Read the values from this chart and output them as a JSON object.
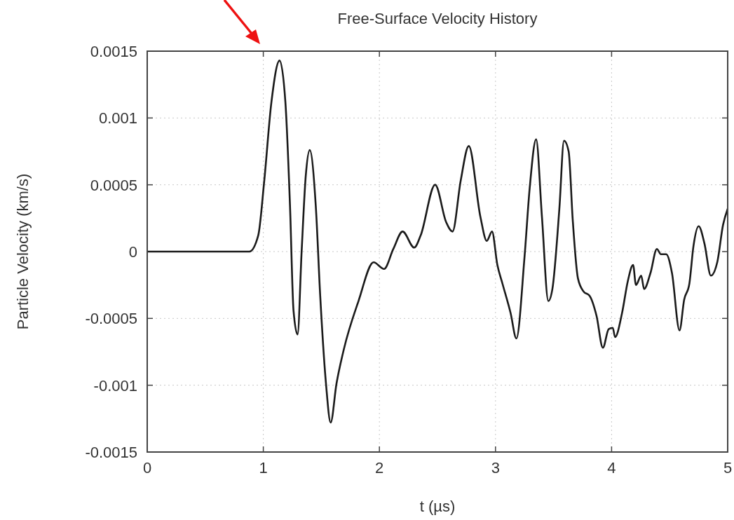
{
  "chart_data": {
    "type": "line",
    "title": "Free-Surface Velocity History",
    "xlabel": "t (µs)",
    "ylabel": "Particle Velocity (km/s)",
    "xlim": [
      0,
      5
    ],
    "xticks": [
      0,
      1,
      2,
      3,
      4,
      5
    ],
    "ylim": [
      -0.0015,
      0.0015
    ],
    "yticks": [
      -0.0015,
      -0.001,
      -0.0005,
      0,
      0.0005,
      0.001,
      0.0015
    ],
    "grid": true,
    "marker": "none",
    "line_style": "solid",
    "series": [
      {
        "color": "#1a1a1a",
        "x": [
          0,
          0.88,
          0.956,
          1.007,
          1.07,
          1.14,
          1.19,
          1.23,
          1.26,
          1.295,
          1.33,
          1.365,
          1.4,
          1.452,
          1.49,
          1.54,
          1.58,
          1.63,
          1.694,
          1.82,
          1.95,
          2.04,
          2.12,
          2.2,
          2.3,
          2.355,
          2.48,
          2.575,
          2.63,
          2.7,
          2.77,
          2.87,
          2.925,
          2.97,
          3.016,
          3.06,
          3.13,
          3.18,
          3.25,
          3.295,
          3.35,
          3.4,
          3.455,
          3.49,
          3.55,
          3.59,
          3.63,
          3.665,
          3.71,
          3.76,
          3.81,
          3.87,
          3.925,
          3.975,
          4.01,
          4.03,
          4.09,
          4.14,
          4.185,
          4.21,
          4.255,
          4.28,
          4.335,
          4.39,
          4.425,
          4.47,
          4.52,
          4.585,
          4.625,
          4.67,
          4.705,
          4.75,
          4.8,
          4.855,
          4.91,
          4.96,
          5
        ],
        "values": [
          0,
          0,
          0.00012,
          0.00052,
          0.00112,
          0.00143,
          0.00112,
          0.00034,
          -0.00044,
          -0.00062,
          0,
          0.00056,
          0.00076,
          0.00034,
          -0.00033,
          -0.00099,
          -0.00128,
          -0.00099,
          -0.00073,
          -0.00037,
          -8e-05,
          -0.00013,
          2e-05,
          0.00015,
          3e-05,
          0.00012,
          0.0005,
          0.00022,
          0.00015,
          0.00053,
          0.00079,
          0.00026,
          8e-05,
          0.00015,
          -0.0001,
          -0.00024,
          -0.00046,
          -0.00065,
          -4e-05,
          0.00048,
          0.00084,
          0.00026,
          -0.00037,
          -0.00028,
          0.00032,
          0.00083,
          0.00075,
          0.00024,
          -0.0002,
          -0.0003,
          -0.00033,
          -0.00048,
          -0.00072,
          -0.00058,
          -0.00057,
          -0.00064,
          -0.00046,
          -0.00022,
          -0.0001,
          -0.00025,
          -0.00018,
          -0.00028,
          -0.00016,
          2e-05,
          -2e-05,
          -2e-05,
          -0.00016,
          -0.00059,
          -0.00036,
          -0.00024,
          4e-05,
          0.00019,
          6e-05,
          -0.00018,
          -8e-05,
          0.0002,
          0.00032
        ]
      }
    ]
  }
}
